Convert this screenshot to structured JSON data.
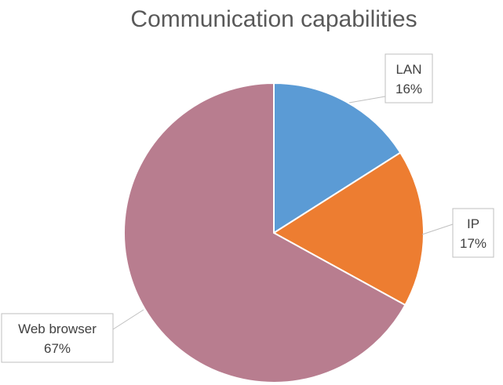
{
  "chart_data": {
    "type": "pie",
    "title": "Communication capabilities",
    "slices": [
      {
        "name": "LAN",
        "value": 16,
        "label": "16%",
        "color": "#5b9bd5"
      },
      {
        "name": "IP",
        "value": 17,
        "label": "17%",
        "color": "#ed7d31"
      },
      {
        "name": "Web browser",
        "value": 67,
        "label": "67%",
        "color": "#b87d8f"
      }
    ]
  }
}
